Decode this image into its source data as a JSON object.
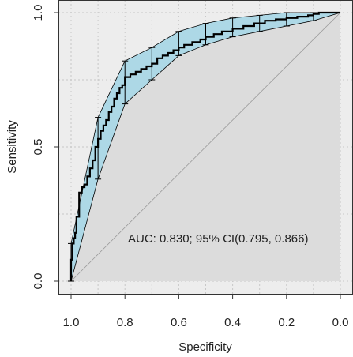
{
  "chart_data": {
    "type": "line",
    "xlabel": "Specificity",
    "ylabel": "Sensitivity",
    "x_reversed": true,
    "xlim": [
      1.0,
      0.0
    ],
    "ylim": [
      0.0,
      1.0
    ],
    "x_ticks": [
      1.0,
      0.8,
      0.6,
      0.4,
      0.2,
      0.0
    ],
    "x_tick_labels": [
      "1.0",
      "0.8",
      "0.6",
      "0.4",
      "0.2",
      "0.0"
    ],
    "y_ticks": [
      0.0,
      0.5,
      1.0
    ],
    "y_tick_labels": [
      "0.0",
      "0.5",
      "1.0"
    ],
    "grid": true,
    "annotation": "AUC: 0.830; 95% CI(0.795, 0.866)",
    "colors": {
      "plot_background": "#ededed",
      "under_curve_fill": "#dcdcdc",
      "ci_band_fill": "#add8e6",
      "roc_line": "#000000",
      "diagonal": "#9a9a9a",
      "grid": "#c8c8c8"
    },
    "series": [
      {
        "x": [
          1.0,
          0.995,
          0.99,
          0.985,
          0.98,
          0.97,
          0.96,
          0.95,
          0.94,
          0.93,
          0.92,
          0.91,
          0.9,
          0.89,
          0.88,
          0.87,
          0.86,
          0.85,
          0.84,
          0.83,
          0.82,
          0.81,
          0.8,
          0.78,
          0.76,
          0.74,
          0.72,
          0.7,
          0.68,
          0.66,
          0.64,
          0.62,
          0.6,
          0.58,
          0.55,
          0.52,
          0.5,
          0.47,
          0.44,
          0.4,
          0.36,
          0.32,
          0.28,
          0.24,
          0.2,
          0.16,
          0.12,
          0.1,
          0.08,
          0.06,
          0.04,
          0.02,
          0.0
        ],
        "y": [
          0.0,
          0.08,
          0.14,
          0.16,
          0.18,
          0.24,
          0.33,
          0.35,
          0.36,
          0.39,
          0.42,
          0.45,
          0.5,
          0.53,
          0.56,
          0.58,
          0.6,
          0.63,
          0.65,
          0.68,
          0.7,
          0.72,
          0.73,
          0.76,
          0.77,
          0.78,
          0.79,
          0.8,
          0.81,
          0.83,
          0.84,
          0.85,
          0.86,
          0.87,
          0.88,
          0.89,
          0.9,
          0.91,
          0.92,
          0.93,
          0.94,
          0.95,
          0.96,
          0.97,
          0.975,
          0.98,
          0.985,
          0.99,
          0.995,
          1.0,
          1.0,
          1.0,
          1.0
        ]
      }
    ],
    "ci_band": {
      "x": [
        1.0,
        0.9,
        0.8,
        0.7,
        0.6,
        0.5,
        0.4,
        0.3,
        0.2,
        0.1,
        0.0
      ],
      "lower": [
        0.0,
        0.38,
        0.66,
        0.75,
        0.84,
        0.88,
        0.91,
        0.93,
        0.95,
        0.97,
        1.0
      ],
      "upper": [
        0.14,
        0.61,
        0.82,
        0.87,
        0.93,
        0.96,
        0.98,
        0.99,
        1.0,
        1.0,
        1.0
      ]
    }
  }
}
